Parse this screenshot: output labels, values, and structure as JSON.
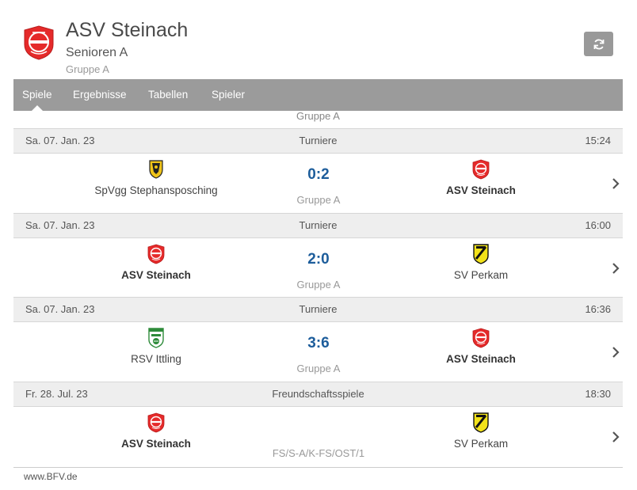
{
  "header": {
    "title": "ASV Steinach",
    "subtitle": "Senioren A",
    "group": "Gruppe A"
  },
  "tabs": [
    {
      "label": "Spiele",
      "active": true
    },
    {
      "label": "Ergebnisse",
      "active": false
    },
    {
      "label": "Tabellen",
      "active": false
    },
    {
      "label": "Spieler",
      "active": false
    }
  ],
  "partial_group": "Gruppe A",
  "matches": [
    {
      "date": "Sa. 07. Jan. 23",
      "competition": "Turniere",
      "time": "15:24",
      "home": {
        "name": "SpVgg Stephansposching",
        "bold": false,
        "logo": "stephansposching-crest-icon"
      },
      "away": {
        "name": "ASV Steinach",
        "bold": true,
        "logo": "asv-steinach-crest-icon"
      },
      "score": "0:2",
      "group": "Gruppe A"
    },
    {
      "date": "Sa. 07. Jan. 23",
      "competition": "Turniere",
      "time": "16:00",
      "home": {
        "name": "ASV Steinach",
        "bold": true,
        "logo": "asv-steinach-crest-icon"
      },
      "away": {
        "name": "SV Perkam",
        "bold": false,
        "logo": "sv-perkam-crest-icon"
      },
      "score": "2:0",
      "group": "Gruppe A"
    },
    {
      "date": "Sa. 07. Jan. 23",
      "competition": "Turniere",
      "time": "16:36",
      "home": {
        "name": "RSV Ittling",
        "bold": false,
        "logo": "rsv-ittling-crest-icon"
      },
      "away": {
        "name": "ASV Steinach",
        "bold": true,
        "logo": "asv-steinach-crest-icon"
      },
      "score": "3:6",
      "group": "Gruppe A"
    },
    {
      "date": "Fr. 28. Jul. 23",
      "competition": "Freundschaftsspiele",
      "time": "18:30",
      "home": {
        "name": "ASV Steinach",
        "bold": true,
        "logo": "asv-steinach-crest-icon"
      },
      "away": {
        "name": "SV Perkam",
        "bold": false,
        "logo": "sv-perkam-crest-icon"
      },
      "score": "",
      "group": "FS/S-A/K-FS/OST/1"
    }
  ],
  "footer": "www.BFV.de",
  "colors": {
    "tab_bar": "#9b9b9b",
    "score": "#1d5d9b",
    "steinach_red": "#e52a2a",
    "perkam_yellow": "#f2e21a"
  }
}
